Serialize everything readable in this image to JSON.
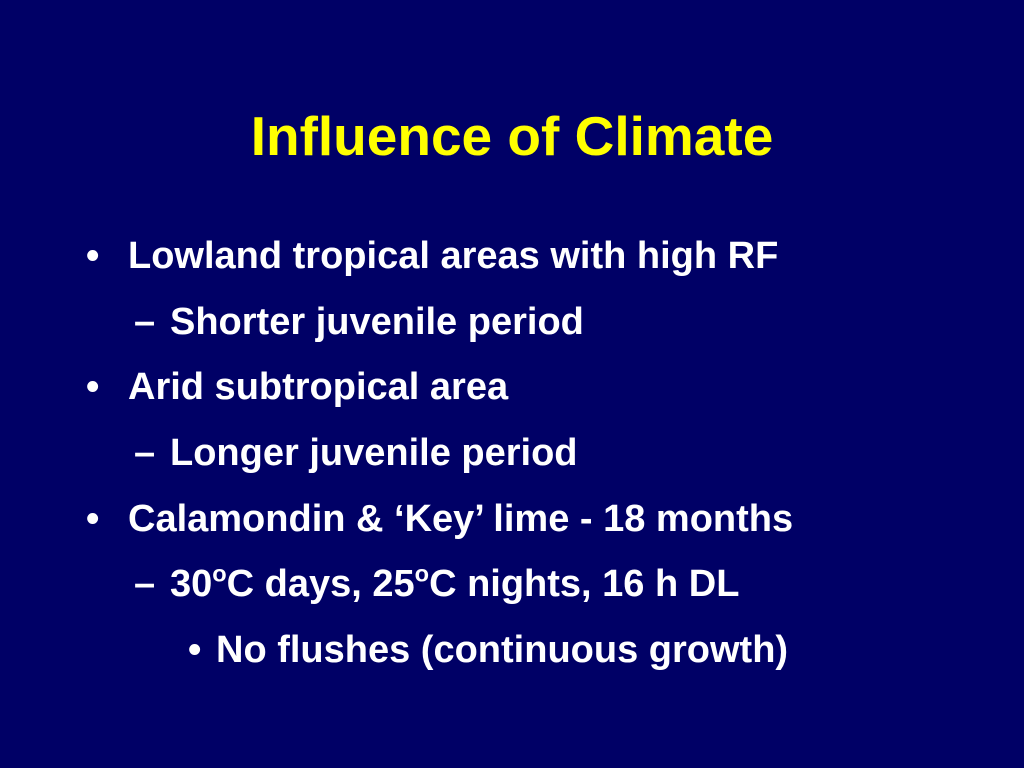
{
  "slide": {
    "title": "Influence of Climate",
    "bullets": [
      {
        "level": 1,
        "marker": "•",
        "text": "Lowland tropical areas with high RF"
      },
      {
        "level": 2,
        "marker": "–",
        "text": "Shorter juvenile period"
      },
      {
        "level": 1,
        "marker": "•",
        "text": "Arid subtropical area"
      },
      {
        "level": 2,
        "marker": "–",
        "text": "Longer juvenile period"
      },
      {
        "level": 1,
        "marker": "•",
        "text": "Calamondin & ‘Key’ lime - 18 months"
      },
      {
        "level": 2,
        "marker": "–",
        "parts": [
          "30",
          "o",
          "C days, 25",
          "o",
          "C nights, 16 h DL"
        ]
      },
      {
        "level": 3,
        "marker": "•",
        "text": "No flushes (continuous growth)"
      }
    ]
  },
  "colors": {
    "background": "#000066",
    "title": "#ffff00",
    "text": "#ffffff"
  }
}
